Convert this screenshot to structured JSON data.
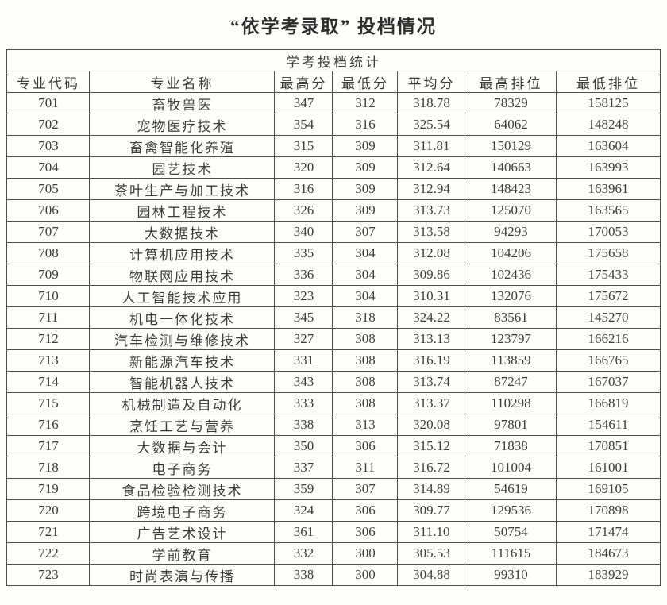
{
  "title": "“依学考录取” 投档情况",
  "colors": {
    "border": "#4f4f4f",
    "text": "#3c3c3c",
    "background": "#fdfdfc"
  },
  "table": {
    "caption": "学考投档统计",
    "headers": [
      "专业代码",
      "专业名称",
      "最高分",
      "最低分",
      "平均分",
      "最高排位",
      "最低排位"
    ],
    "rows": [
      [
        "701",
        "畜牧兽医",
        "347",
        "312",
        "318.78",
        "78329",
        "158125"
      ],
      [
        "702",
        "宠物医疗技术",
        "354",
        "316",
        "325.54",
        "64062",
        "148248"
      ],
      [
        "703",
        "畜禽智能化养殖",
        "315",
        "309",
        "311.81",
        "150129",
        "163604"
      ],
      [
        "704",
        "园艺技术",
        "320",
        "309",
        "312.64",
        "140663",
        "163993"
      ],
      [
        "705",
        "茶叶生产与加工技术",
        "316",
        "309",
        "312.94",
        "148423",
        "163961"
      ],
      [
        "706",
        "园林工程技术",
        "326",
        "309",
        "313.73",
        "125070",
        "163565"
      ],
      [
        "707",
        "大数据技术",
        "340",
        "307",
        "313.58",
        "94293",
        "170053"
      ],
      [
        "708",
        "计算机应用技术",
        "335",
        "304",
        "312.08",
        "104206",
        "175658"
      ],
      [
        "709",
        "物联网应用技术",
        "336",
        "304",
        "309.86",
        "102436",
        "175433"
      ],
      [
        "710",
        "人工智能技术应用",
        "323",
        "304",
        "310.31",
        "132076",
        "175672"
      ],
      [
        "711",
        "机电一体化技术",
        "345",
        "318",
        "324.22",
        "83561",
        "145270"
      ],
      [
        "712",
        "汽车检测与维修技术",
        "327",
        "308",
        "313.13",
        "123797",
        "166216"
      ],
      [
        "713",
        "新能源汽车技术",
        "331",
        "308",
        "316.19",
        "113859",
        "166765"
      ],
      [
        "714",
        "智能机器人技术",
        "343",
        "308",
        "313.74",
        "87247",
        "167037"
      ],
      [
        "715",
        "机械制造及自动化",
        "333",
        "308",
        "313.37",
        "110298",
        "166819"
      ],
      [
        "716",
        "烹饪工艺与营养",
        "338",
        "313",
        "320.08",
        "97801",
        "154611"
      ],
      [
        "717",
        "大数据与会计",
        "350",
        "306",
        "315.12",
        "71838",
        "170851"
      ],
      [
        "718",
        "电子商务",
        "337",
        "311",
        "316.72",
        "101004",
        "161001"
      ],
      [
        "719",
        "食品检验检测技术",
        "359",
        "307",
        "314.89",
        "54619",
        "169105"
      ],
      [
        "720",
        "跨境电子商务",
        "324",
        "306",
        "309.77",
        "129536",
        "170898"
      ],
      [
        "721",
        "广告艺术设计",
        "361",
        "306",
        "311.10",
        "50754",
        "171474"
      ],
      [
        "722",
        "学前教育",
        "332",
        "300",
        "305.53",
        "111615",
        "184673"
      ],
      [
        "723",
        "时尚表演与传播",
        "338",
        "300",
        "304.88",
        "99310",
        "183929"
      ]
    ]
  }
}
